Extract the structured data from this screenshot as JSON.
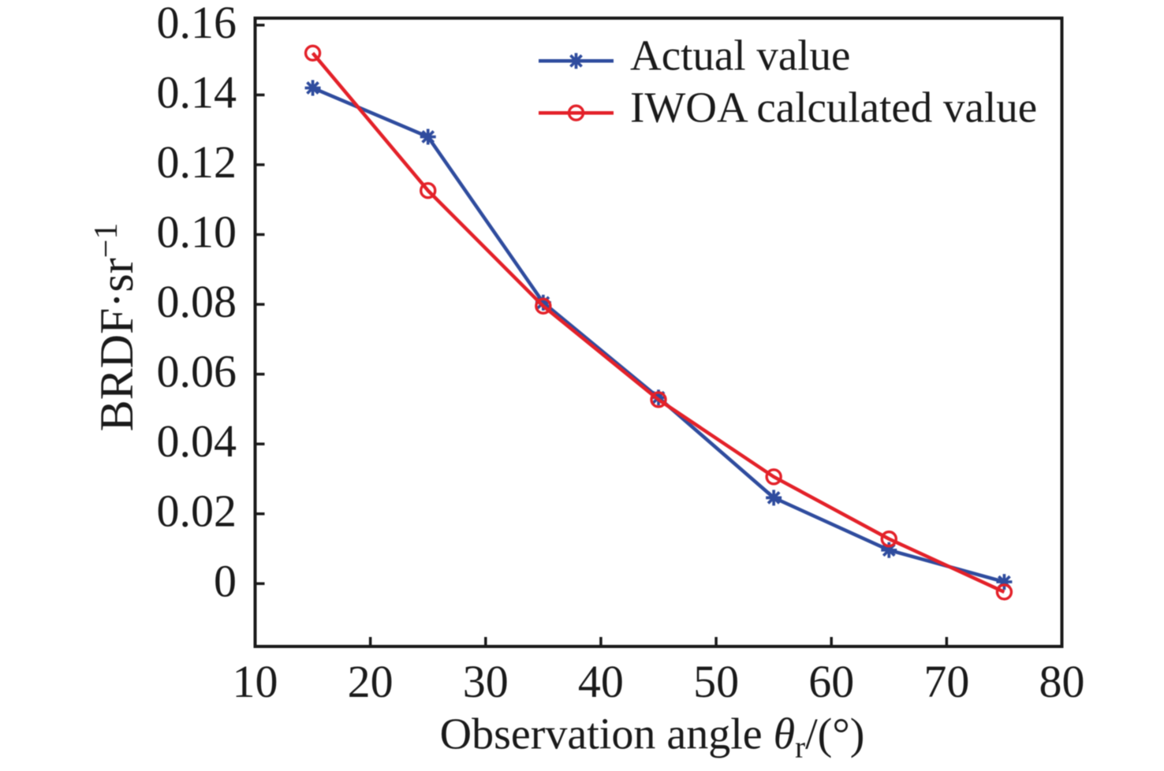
{
  "figure": {
    "background_color": "#ffffff",
    "axis_color": "#1a1a1a",
    "text_color": "#1a1a1a"
  },
  "chart_data": {
    "type": "line",
    "title": "",
    "xlabel": {
      "prefix": "Observation angle ",
      "symbol": "θ",
      "subscript": "r",
      "suffix": "/(°)",
      "text": "Observation angle θr/(°)"
    },
    "ylabel": {
      "base": "BRDF·sr",
      "superscript": "−1",
      "text": "BRDF·sr−1"
    },
    "xlim": [
      10,
      80
    ],
    "ylim": [
      -0.018,
      0.162
    ],
    "x_ticks": [
      10,
      20,
      30,
      40,
      50,
      60,
      70,
      80
    ],
    "x_tick_labels": [
      "10",
      "20",
      "30",
      "40",
      "50",
      "60",
      "70",
      "80"
    ],
    "y_ticks": [
      0,
      0.02,
      0.04,
      0.06,
      0.08,
      0.1,
      0.12,
      0.14,
      0.16
    ],
    "y_tick_labels": [
      "0",
      "0.02",
      "0.04",
      "0.06",
      "0.08",
      "0.10",
      "0.12",
      "0.14",
      "0.16"
    ],
    "x": [
      15,
      25,
      35,
      45,
      55,
      65,
      75
    ],
    "series": [
      {
        "name": "Actual value",
        "color": "#2f4c9e",
        "marker": "asterisk-8",
        "values": [
          0.142,
          0.128,
          0.0805,
          0.0533,
          0.0246,
          0.0096,
          0.0005
        ]
      },
      {
        "name": "IWOA calculated value",
        "color": "#e32129",
        "marker": "open-circle",
        "values": [
          0.152,
          0.1126,
          0.0795,
          0.0527,
          0.0306,
          0.0128,
          -0.0024
        ]
      }
    ],
    "legend": {
      "position": "upper-right",
      "frame": false
    },
    "grid": false
  }
}
